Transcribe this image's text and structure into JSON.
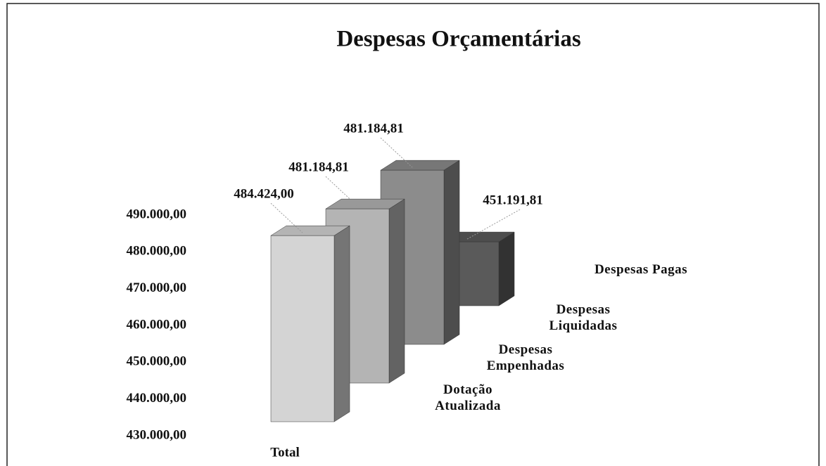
{
  "chart_data": {
    "type": "bar3d",
    "title": "Despesas Orçamentárias",
    "categories": [
      "Total"
    ],
    "series": [
      {
        "name": "Dotação Atualizada",
        "color": "#d4d4d4",
        "values": [
          484424.0
        ],
        "value_labels": [
          "484.424,00"
        ]
      },
      {
        "name": "Despesas Empenhadas",
        "color": "#b4b4b4",
        "values": [
          481184.81
        ],
        "value_labels": [
          "481.184,81"
        ]
      },
      {
        "name": "Despesas Liquidadas",
        "color": "#8c8c8c",
        "values": [
          481184.81
        ],
        "value_labels": [
          "481.184,81"
        ]
      },
      {
        "name": "Despesas Pagas",
        "color": "#5a5a5a",
        "values": [
          451191.81
        ],
        "value_labels": [
          "451.191,81"
        ]
      }
    ],
    "ylim": [
      430000,
      490000
    ],
    "yticks": [
      {
        "value": 430000,
        "label": "430.000,00"
      },
      {
        "value": 440000,
        "label": "440.000,00"
      },
      {
        "value": 450000,
        "label": "450.000,00"
      },
      {
        "value": 460000,
        "label": "460.000,00"
      },
      {
        "value": 470000,
        "label": "470.000,00"
      },
      {
        "value": 480000,
        "label": "480.000,00"
      },
      {
        "value": 490000,
        "label": "490.000,00"
      }
    ],
    "grid": false
  }
}
